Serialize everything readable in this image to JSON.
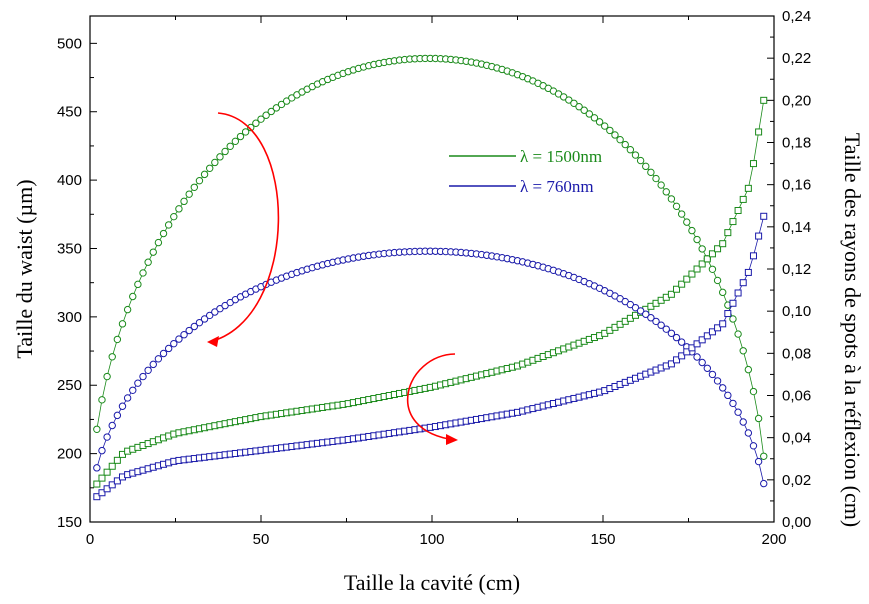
{
  "chart_data": {
    "type": "scatter",
    "title": "",
    "xlabel": "Taille la cavité  (cm)",
    "ylabel": "Taille du waist (µm)",
    "y2label": "Taille des rayons de spots à la réflexion (cm)",
    "xlim": [
      0,
      200
    ],
    "ylim": [
      150,
      520
    ],
    "y2lim": [
      0,
      0.24
    ],
    "xticks": [
      "0",
      "50",
      "100",
      "150",
      "200"
    ],
    "yticks": [
      "150",
      "200",
      "250",
      "300",
      "350",
      "400",
      "450",
      "500"
    ],
    "y2ticks": [
      "0,00",
      "0,02",
      "0,04",
      "0,06",
      "0,08",
      "0,10",
      "0,12",
      "0,14",
      "0,16",
      "0,18",
      "0,20",
      "0,22",
      "0,24"
    ],
    "legend_placement": "center-right",
    "grid": false,
    "series": [
      {
        "name": "λ = 1500nm",
        "color": "#1a8a1a",
        "waist_peak": 489,
        "cavity_max": 198,
        "spot_points": [
          [
            2,
            0.018
          ],
          [
            10,
            0.033
          ],
          [
            25,
            0.042
          ],
          [
            50,
            0.05
          ],
          [
            75,
            0.056
          ],
          [
            100,
            0.064
          ],
          [
            125,
            0.074
          ],
          [
            150,
            0.089
          ],
          [
            170,
            0.108
          ],
          [
            185,
            0.132
          ],
          [
            193,
            0.16
          ],
          [
            197,
            0.2
          ],
          [
            198,
            0.22
          ]
        ]
      },
      {
        "name": "λ = 760nm",
        "color": "#1a1aaa",
        "waist_peak": 348,
        "cavity_max": 198,
        "spot_points": [
          [
            2,
            0.012
          ],
          [
            10,
            0.022
          ],
          [
            25,
            0.029
          ],
          [
            50,
            0.034
          ],
          [
            75,
            0.039
          ],
          [
            100,
            0.045
          ],
          [
            125,
            0.052
          ],
          [
            150,
            0.062
          ],
          [
            170,
            0.075
          ],
          [
            185,
            0.094
          ],
          [
            193,
            0.12
          ],
          [
            197,
            0.145
          ],
          [
            198,
            0.155
          ]
        ]
      }
    ]
  }
}
